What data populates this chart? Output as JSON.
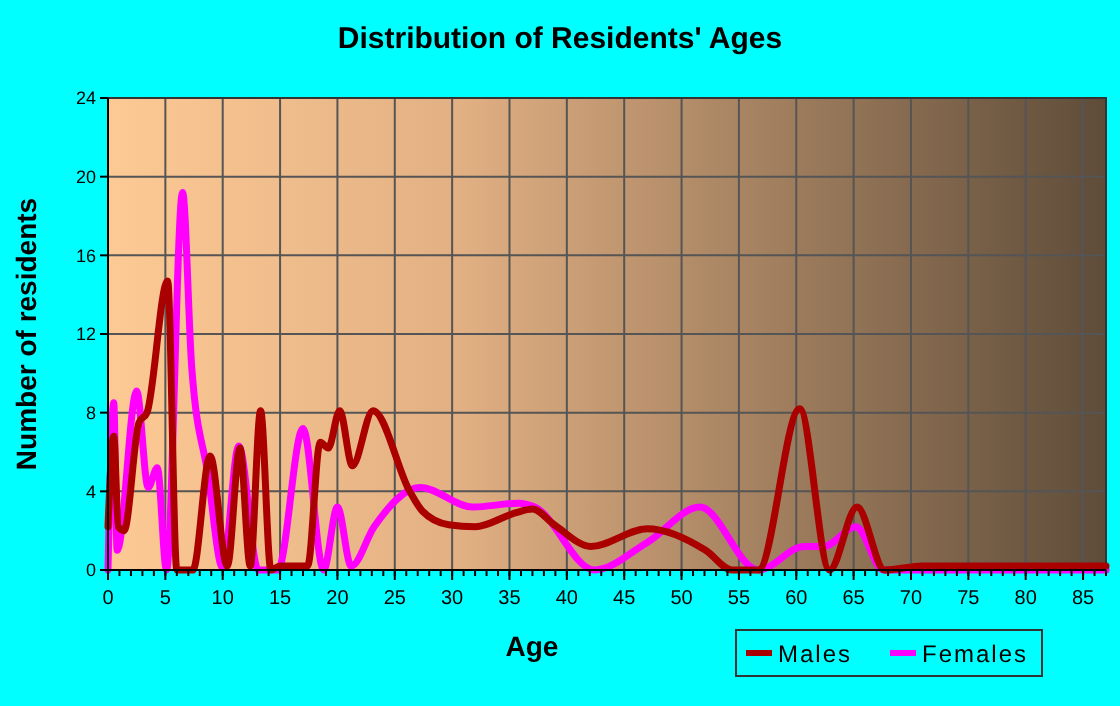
{
  "chart_data": {
    "type": "line",
    "title": "Distribution of Residents' Ages",
    "xlabel": "Age",
    "ylabel": "Number of residents",
    "xlim": [
      0,
      87
    ],
    "ylim": [
      0,
      24
    ],
    "xticks": [
      0,
      5,
      10,
      15,
      20,
      25,
      30,
      35,
      40,
      45,
      50,
      55,
      60,
      65,
      70,
      75,
      80,
      85
    ],
    "yticks": [
      0,
      4,
      8,
      12,
      16,
      20,
      24
    ],
    "grid": true,
    "legend": "bottom right",
    "line_style": "solid",
    "series": [
      {
        "name": "Males",
        "color": "#aa0000",
        "x": [
          0,
          0.5,
          0.9,
          1.4,
          2.7,
          3.4,
          5.2,
          6.0,
          7.4,
          8.9,
          10.4,
          11.5,
          12.4,
          13.3,
          14.2,
          15,
          16,
          17.4,
          18.5,
          19.2,
          20.2,
          21.3,
          23.1,
          26.3,
          27.4,
          29.7,
          32,
          35.5,
          37,
          38.9,
          42.1,
          47,
          52.1,
          54.4,
          56.7,
          60.3,
          62.9,
          65.3,
          67.7,
          71,
          75,
          87
        ],
        "values": [
          2.2,
          6.8,
          2.2,
          2,
          7.5,
          8,
          14.7,
          0,
          0,
          5.8,
          0.2,
          6.2,
          0.2,
          8.1,
          0,
          0.2,
          0.2,
          0.2,
          6.5,
          6.2,
          8.1,
          5.3,
          8.1,
          4,
          3,
          2.3,
          2.2,
          2.9,
          3.1,
          2.3,
          1.2,
          2.1,
          1,
          0,
          0,
          8.2,
          0,
          3.2,
          0,
          0.2,
          0.2,
          0.2
        ]
      },
      {
        "name": "Females",
        "color": "#ff00ff",
        "x": [
          0,
          0.5,
          0.8,
          2.5,
          3.5,
          4.3,
          5.1,
          6.5,
          7.3,
          8.7,
          10,
          11.4,
          13.1,
          14.8,
          17,
          18.8,
          20,
          21.2,
          23.2,
          27.2,
          31.8,
          35.8,
          37.2,
          42.4,
          47,
          51.6,
          56.7,
          60.7,
          62.4,
          65.2,
          67.6,
          75,
          87
        ],
        "values": [
          0,
          8.5,
          1,
          9.1,
          4.2,
          5.2,
          0,
          19.2,
          10.3,
          4.9,
          0.1,
          6.3,
          0,
          0,
          7.2,
          0,
          3.2,
          0.2,
          2.2,
          4.2,
          3.2,
          3.4,
          3.2,
          0,
          1.4,
          3.2,
          0,
          1.2,
          1.2,
          2.2,
          0,
          0,
          0
        ]
      }
    ]
  }
}
